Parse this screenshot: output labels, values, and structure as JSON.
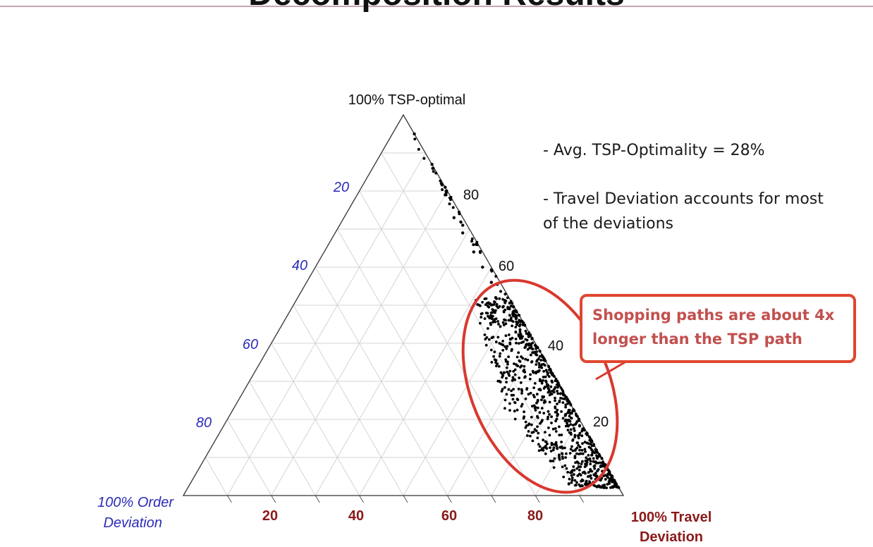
{
  "slide": {
    "title": "Decomposition Results"
  },
  "notes": {
    "bullet1": "- Avg. TSP-Optimality = 28%",
    "bullet2": "- Travel Deviation accounts for most of the deviations"
  },
  "callout": {
    "text": "Shopping paths are about 4x longer than the TSP path"
  },
  "colors": {
    "callout_border": "#e0462f",
    "callout_text": "#c2504e",
    "ellipse": "#d9382f",
    "left_axis": "#2b2bb8",
    "bottom_axis": "#8b1a1a",
    "grid": "#d4d4d4",
    "points": "#000000"
  },
  "chart_data": {
    "type": "scatter",
    "subtype": "ternary",
    "vertices": {
      "top": "100% TSP-optimal",
      "left": [
        "100% Order",
        "Deviation"
      ],
      "right": [
        "100% Travel",
        "Deviation"
      ]
    },
    "ticks": [
      20,
      40,
      60,
      80
    ],
    "left_axis_tick_labels": [
      "20",
      "40",
      "60",
      "80"
    ],
    "right_axis_tick_labels": [
      "80",
      "60",
      "40",
      "20"
    ],
    "bottom_axis_tick_labels": [
      "20",
      "40",
      "60",
      "80"
    ],
    "grid": true,
    "highlight": "ellipse around point cloud near the travel-deviation edge",
    "point_count_estimate": 900,
    "edge_points": [
      {
        "tsp": 95,
        "travel": 5,
        "order": 0
      },
      {
        "tsp": 87,
        "travel": 13,
        "order": 0
      },
      {
        "tsp": 81,
        "travel": 19,
        "order": 0
      },
      {
        "tsp": 79,
        "travel": 20,
        "order": 1
      },
      {
        "tsp": 73,
        "travel": 25,
        "order": 2
      },
      {
        "tsp": 71,
        "travel": 28,
        "order": 1
      },
      {
        "tsp": 69,
        "travel": 29,
        "order": 2
      },
      {
        "tsp": 64,
        "travel": 34,
        "order": 2
      },
      {
        "tsp": 60,
        "travel": 38,
        "order": 2
      },
      {
        "tsp": 56,
        "travel": 42,
        "order": 2
      },
      {
        "tsp": 52,
        "travel": 45,
        "order": 3
      }
    ],
    "cloud": {
      "tsp_range": [
        2,
        52
      ],
      "order_range": [
        0,
        16
      ],
      "concentration": "densest at tsp 10-30, order 0-8"
    }
  }
}
